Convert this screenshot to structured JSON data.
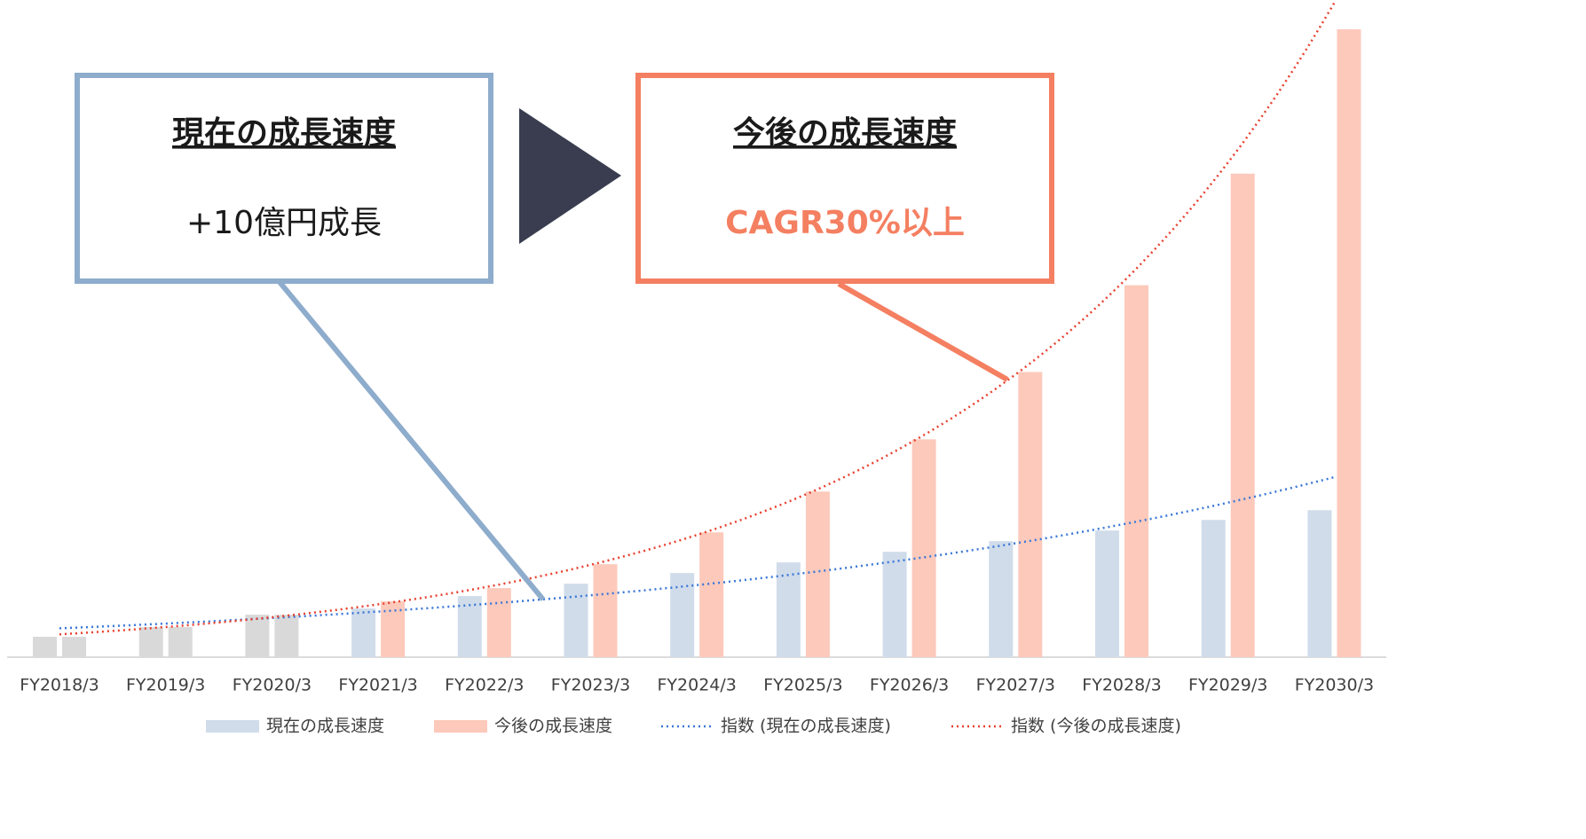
{
  "chart_data": {
    "type": "bar",
    "categories": [
      "FY2018/3",
      "FY2019/3",
      "FY2020/3",
      "FY2021/3",
      "FY2022/3",
      "FY2023/3",
      "FY2024/3",
      "FY2025/3",
      "FY2026/3",
      "FY2027/3",
      "FY2028/3",
      "FY2029/3",
      "FY2030/3"
    ],
    "series": [
      {
        "name": "現在の成長速度",
        "color": "#d0dcea",
        "point_colors": [
          "#d9d9d9",
          "#d9d9d9",
          "#d9d9d9",
          null,
          null,
          null,
          null,
          null,
          null,
          null,
          null,
          null,
          null
        ],
        "values": [
          2.3,
          3.4,
          4.8,
          5.5,
          6.9,
          8.3,
          9.5,
          10.7,
          11.9,
          13.1,
          14.3,
          15.5,
          16.6
        ]
      },
      {
        "name": "今後の成長速度",
        "color": "#fdc9bb",
        "point_colors": [
          "#d9d9d9",
          "#d9d9d9",
          "#d9d9d9",
          null,
          null,
          null,
          null,
          null,
          null,
          null,
          null,
          null,
          null
        ],
        "values": [
          2.3,
          3.4,
          4.8,
          6.3,
          7.8,
          10.5,
          14.1,
          18.7,
          24.6,
          32.2,
          42.0,
          54.6,
          70.9
        ]
      }
    ],
    "trendlines": [
      {
        "name": "指数 (現在の成長速度)",
        "series": 0,
        "kind": "exponential",
        "color": "#3b78d8"
      },
      {
        "name": "指数 (今後の成長速度)",
        "series": 1,
        "kind": "exponential",
        "color": "#e8412f"
      }
    ],
    "ylim": [
      0,
      71
    ],
    "legend": "bottom",
    "annotations": [
      {
        "title": "現在の成長速度",
        "text": "+10億円成長",
        "color": "#8eaccc",
        "text_color": "#1a1a1a"
      },
      {
        "title": "今後の成長速度",
        "text": "CAGR30%以上",
        "color": "#f47f61",
        "text_color": "#f47f61"
      }
    ]
  }
}
